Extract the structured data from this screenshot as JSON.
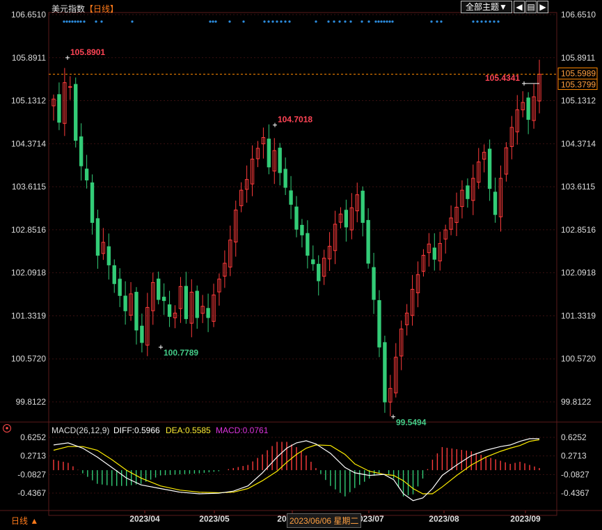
{
  "header": {
    "instrument": "美元指数",
    "period": "【日线】",
    "theme_button": "全部主题▼",
    "nav_left": "◀",
    "nav_right": "▶",
    "toolbar_icon": "▤"
  },
  "indicator": {
    "label": "MACD(26,12,9)",
    "diff": "DIFF:0.5966",
    "dea": "DEA:0.5585",
    "macd": "MACD:0.0761"
  },
  "footer": {
    "period_tab": "日线 ▲",
    "cursor_date": "2023/06/06 星期二"
  },
  "colors": {
    "up": "#ff3b3b",
    "down": "#33cc77",
    "diff_line": "#ffffff",
    "dea_line": "#ffee00",
    "macd_label": "#dd33dd",
    "dea_label": "#ffee33",
    "last_price_box": "#ff8800"
  },
  "chart_data": [
    {
      "type": "candlestick",
      "y_ticks": [
        "106.6510",
        "105.8911",
        "105.1312",
        "104.3714",
        "103.6115",
        "102.8516",
        "102.0918",
        "101.3319",
        "100.5720",
        "99.8122"
      ],
      "ylim": [
        99.35,
        106.87
      ],
      "x_tick_labels": [
        "2023/04",
        "2023/05",
        "2023/06",
        "2023/07",
        "2023/08",
        "2023/09"
      ],
      "annotations": [
        {
          "text": "105.8901",
          "value": 105.8901,
          "kind": "high"
        },
        {
          "text": "104.7018",
          "value": 104.7018,
          "kind": "high"
        },
        {
          "text": "100.7789",
          "value": 100.7789,
          "kind": "low"
        },
        {
          "text": "99.5494",
          "value": 99.5494,
          "kind": "low"
        },
        {
          "text": "105.4341",
          "value": 105.4341,
          "kind": "high"
        }
      ],
      "last_price_labels": [
        "105.5989",
        "105.3799"
      ],
      "last_price": 105.5989,
      "close_path": [
        105.16,
        104.75,
        105.45,
        105.38,
        104.43,
        103.98,
        103.73,
        102.98,
        102.4,
        102.63,
        102.23,
        101.9,
        101.69,
        101.42,
        101.72,
        101.08,
        100.86,
        101.48,
        101.92,
        101.62,
        101.6,
        101.32,
        101.38,
        101.85,
        101.28,
        101.75,
        101.3,
        101.5,
        101.3,
        101.7,
        101.98,
        102.26,
        102.67,
        103.2,
        103.55,
        103.74,
        104.1,
        104.29,
        104.48,
        103.96,
        104.25,
        103.86,
        103.6,
        103.3,
        102.86,
        102.76,
        102.4,
        102.25,
        101.95,
        102.35,
        102.56,
        102.95,
        103.13,
        102.9,
        103.24,
        103.47,
        102.98,
        102.26,
        101.62,
        100.78,
        99.81,
        100.05,
        100.6,
        101.1,
        101.38,
        101.8,
        102.06,
        102.4,
        102.6,
        102.33,
        102.61,
        102.85,
        103.06,
        103.25,
        103.55,
        103.4,
        103.76,
        104.05,
        104.22,
        103.58,
        103.12,
        103.76,
        104.3,
        104.66,
        104.97,
        105.1,
        104.8,
        105.2,
        105.6
      ]
    },
    {
      "type": "line",
      "name": "MACD(26,12,9)",
      "y_ticks": [
        "0.6252",
        "0.2713",
        "-0.0827",
        "-0.4367"
      ],
      "ylim": [
        -0.72,
        0.82
      ],
      "x_range": [
        0,
        100
      ],
      "diff": [
        [
          0,
          0.48
        ],
        [
          3,
          0.52
        ],
        [
          6,
          0.42
        ],
        [
          9,
          0.25
        ],
        [
          12,
          0.05
        ],
        [
          15,
          -0.15
        ],
        [
          18,
          -0.28
        ],
        [
          22,
          -0.35
        ],
        [
          26,
          -0.42
        ],
        [
          30,
          -0.45
        ],
        [
          34,
          -0.44
        ],
        [
          37,
          -0.4
        ],
        [
          40,
          -0.3
        ],
        [
          43,
          -0.05
        ],
        [
          46,
          0.25
        ],
        [
          48,
          0.42
        ],
        [
          50,
          0.52
        ],
        [
          52,
          0.56
        ],
        [
          54,
          0.5
        ],
        [
          57,
          0.32
        ],
        [
          60,
          0.05
        ],
        [
          62,
          -0.05
        ],
        [
          65,
          -0.1
        ],
        [
          68,
          -0.08
        ],
        [
          70,
          -0.18
        ],
        [
          72,
          -0.45
        ],
        [
          74,
          -0.58
        ],
        [
          76,
          -0.53
        ],
        [
          78,
          -0.35
        ],
        [
          80,
          -0.1
        ],
        [
          83,
          0.1
        ],
        [
          86,
          0.28
        ],
        [
          89,
          0.38
        ],
        [
          92,
          0.45
        ],
        [
          94,
          0.48
        ],
        [
          96,
          0.55
        ],
        [
          98,
          0.6
        ],
        [
          100,
          0.6
        ]
      ],
      "dea": [
        [
          0,
          0.38
        ],
        [
          3,
          0.45
        ],
        [
          6,
          0.45
        ],
        [
          9,
          0.38
        ],
        [
          12,
          0.2
        ],
        [
          15,
          0.0
        ],
        [
          18,
          -0.15
        ],
        [
          22,
          -0.3
        ],
        [
          26,
          -0.38
        ],
        [
          30,
          -0.42
        ],
        [
          34,
          -0.43
        ],
        [
          37,
          -0.42
        ],
        [
          40,
          -0.35
        ],
        [
          43,
          -0.2
        ],
        [
          46,
          -0.02
        ],
        [
          48,
          0.15
        ],
        [
          50,
          0.3
        ],
        [
          52,
          0.42
        ],
        [
          54,
          0.48
        ],
        [
          57,
          0.47
        ],
        [
          60,
          0.3
        ],
        [
          62,
          0.12
        ],
        [
          65,
          -0.02
        ],
        [
          68,
          -0.08
        ],
        [
          70,
          -0.1
        ],
        [
          72,
          -0.2
        ],
        [
          74,
          -0.35
        ],
        [
          76,
          -0.45
        ],
        [
          78,
          -0.45
        ],
        [
          80,
          -0.32
        ],
        [
          83,
          -0.1
        ],
        [
          86,
          0.1
        ],
        [
          89,
          0.25
        ],
        [
          92,
          0.36
        ],
        [
          94,
          0.42
        ],
        [
          96,
          0.47
        ],
        [
          98,
          0.55
        ],
        [
          100,
          0.58
        ]
      ]
    }
  ]
}
